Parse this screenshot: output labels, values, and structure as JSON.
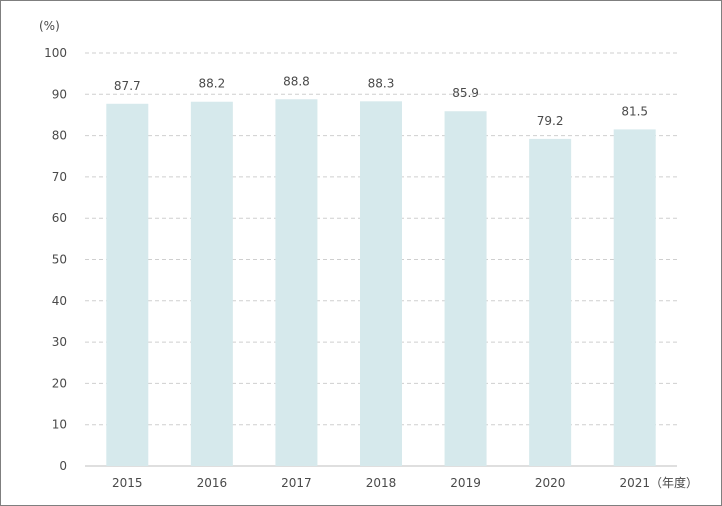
{
  "chart_data": {
    "type": "bar",
    "y_unit": "(%)",
    "x_unit": "（年度）",
    "categories": [
      "2015",
      "2016",
      "2017",
      "2018",
      "2019",
      "2020",
      "2021"
    ],
    "values": [
      87.7,
      88.2,
      88.8,
      88.3,
      85.9,
      79.2,
      81.5
    ],
    "value_labels": [
      "87.7",
      "88.2",
      "88.8",
      "88.3",
      "85.9",
      "79.2",
      "81.5"
    ],
    "ylim": [
      0,
      100
    ],
    "yticks": [
      "0",
      "10",
      "20",
      "30",
      "40",
      "50",
      "60",
      "70",
      "80",
      "90",
      "100"
    ],
    "grid": "dashed horizontal",
    "bar_color": "#d6e9ec",
    "grid_color": "#cfcfcf"
  }
}
